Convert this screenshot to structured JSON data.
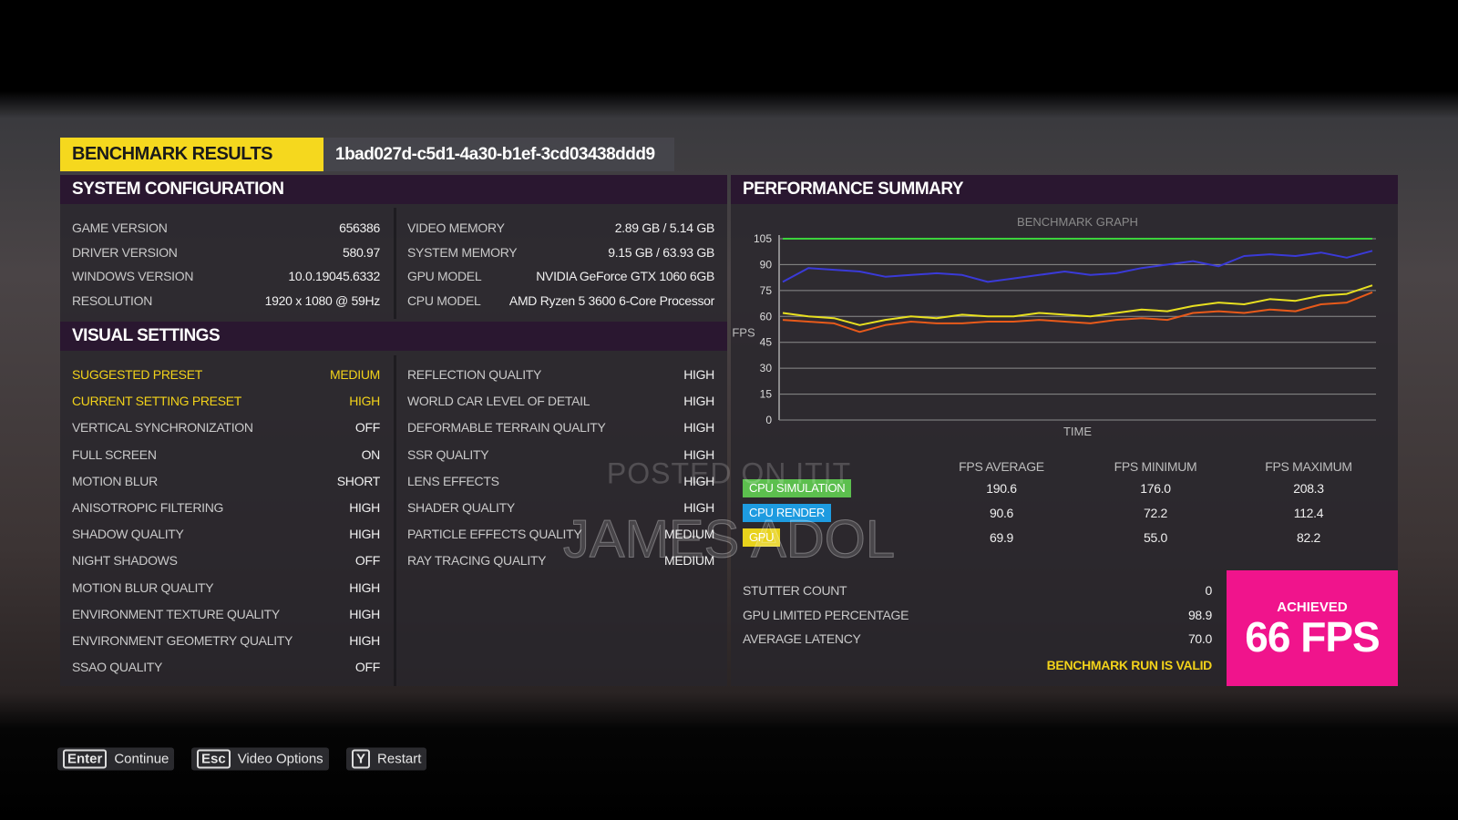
{
  "header": {
    "title": "BENCHMARK RESULTS",
    "run_id": "1bad027d-c5d1-4a30-b1ef-3cd03438ddd9"
  },
  "system_configuration": {
    "title": "SYSTEM CONFIGURATION",
    "left": [
      [
        "GAME VERSION",
        "656386"
      ],
      [
        "DRIVER VERSION",
        "580.97"
      ],
      [
        "WINDOWS VERSION",
        "10.0.19045.6332"
      ],
      [
        "RESOLUTION",
        "1920 x 1080 @ 59Hz"
      ]
    ],
    "right": [
      [
        "VIDEO MEMORY",
        "2.89 GB / 5.14 GB"
      ],
      [
        "SYSTEM MEMORY",
        "9.15 GB / 63.93 GB"
      ],
      [
        "GPU MODEL",
        "NVIDIA GeForce GTX 1060 6GB"
      ],
      [
        "CPU MODEL",
        "AMD Ryzen 5 3600 6-Core Processor"
      ]
    ]
  },
  "visual_settings": {
    "title": "VISUAL SETTINGS",
    "left": [
      [
        "SUGGESTED PRESET",
        "MEDIUM"
      ],
      [
        "CURRENT SETTING PRESET",
        "HIGH"
      ],
      [
        "VERTICAL SYNCHRONIZATION",
        "OFF"
      ],
      [
        "FULL SCREEN",
        "ON"
      ],
      [
        "MOTION BLUR",
        "SHORT"
      ],
      [
        "ANISOTROPIC FILTERING",
        "HIGH"
      ],
      [
        "SHADOW QUALITY",
        "HIGH"
      ],
      [
        "NIGHT SHADOWS",
        "OFF"
      ],
      [
        "MOTION BLUR QUALITY",
        "HIGH"
      ],
      [
        "ENVIRONMENT TEXTURE QUALITY",
        "HIGH"
      ],
      [
        "ENVIRONMENT GEOMETRY QUALITY",
        "HIGH"
      ],
      [
        "SSAO QUALITY",
        "OFF"
      ]
    ],
    "right": [
      [
        "REFLECTION QUALITY",
        "HIGH"
      ],
      [
        "WORLD CAR LEVEL OF DETAIL",
        "HIGH"
      ],
      [
        "DEFORMABLE TERRAIN QUALITY",
        "HIGH"
      ],
      [
        "SSR QUALITY",
        "HIGH"
      ],
      [
        "LENS EFFECTS",
        "HIGH"
      ],
      [
        "SHADER QUALITY",
        "HIGH"
      ],
      [
        "PARTICLE EFFECTS QUALITY",
        "MEDIUM"
      ],
      [
        "RAY TRACING QUALITY",
        "MEDIUM"
      ]
    ]
  },
  "performance_summary": {
    "title": "PERFORMANCE SUMMARY",
    "columns": [
      "FPS AVERAGE",
      "FPS MINIMUM",
      "FPS MAXIMUM"
    ],
    "rows": [
      {
        "label": "CPU SIMULATION",
        "color": "#5cbf4e",
        "values": [
          "190.6",
          "176.0",
          "208.3"
        ]
      },
      {
        "label": "CPU RENDER",
        "color": "#1e9be0",
        "values": [
          "90.6",
          "72.2",
          "112.4"
        ]
      },
      {
        "label": "GPU",
        "color": "#e8d21c",
        "values": [
          "69.9",
          "55.0",
          "82.2"
        ]
      }
    ],
    "stats": [
      [
        "STUTTER COUNT",
        "0"
      ],
      [
        "GPU LIMITED PERCENTAGE",
        "98.9"
      ],
      [
        "AVERAGE LATENCY",
        "70.0"
      ]
    ],
    "validity": "BENCHMARK RUN IS VALID",
    "achieved_label": "ACHIEVED",
    "achieved_value": "66 FPS"
  },
  "chart_data": {
    "type": "line",
    "title": "BENCHMARK GRAPH",
    "y_label": "FPS",
    "x_label": "TIME",
    "ylim": [
      0,
      105
    ],
    "yticks": [
      0,
      15,
      30,
      45,
      60,
      75,
      90,
      105
    ],
    "grid": true,
    "series": [
      {
        "color": "#3cd23c",
        "values": [
          105,
          105,
          105,
          105,
          105,
          105,
          105,
          105,
          105,
          105,
          105,
          105,
          105,
          105,
          105,
          105,
          105,
          105,
          105,
          105,
          105,
          105,
          105,
          105
        ]
      },
      {
        "color": "#3a3ad8",
        "values": [
          80,
          88,
          87,
          86,
          83,
          84,
          85,
          84,
          80,
          82,
          84,
          86,
          84,
          85,
          88,
          90,
          92,
          89,
          95,
          96,
          95,
          97,
          94,
          98
        ]
      },
      {
        "color": "#e85a1a",
        "values": [
          58,
          57,
          56,
          51,
          55,
          57,
          56,
          56,
          57,
          57,
          58,
          57,
          56,
          58,
          59,
          58,
          62,
          63,
          62,
          64,
          63,
          67,
          68,
          74
        ]
      },
      {
        "color": "#e8e020",
        "values": [
          62,
          60,
          59,
          55,
          58,
          60,
          59,
          61,
          60,
          60,
          62,
          61,
          60,
          62,
          64,
          63,
          66,
          68,
          67,
          70,
          69,
          72,
          73,
          78
        ]
      }
    ]
  },
  "controls": [
    {
      "key": "Enter",
      "label": "Continue"
    },
    {
      "key": "Esc",
      "label": "Video Options"
    },
    {
      "key": "Y",
      "label": "Restart"
    }
  ],
  "watermark": [
    "POSTED ON ITIT",
    "JAMES ADOL"
  ]
}
